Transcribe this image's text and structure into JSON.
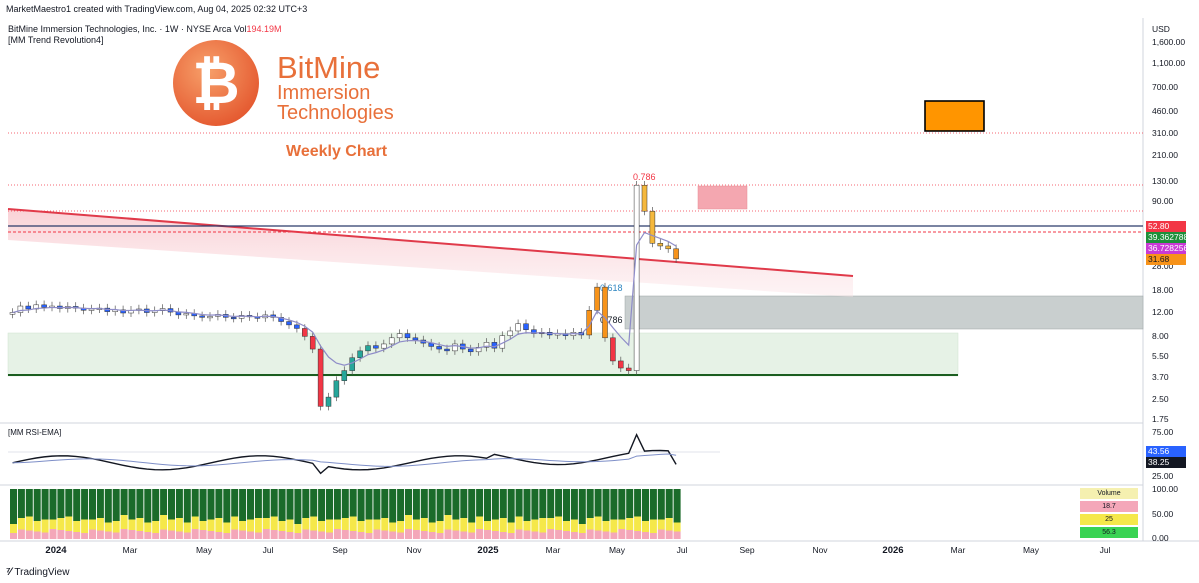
{
  "header": {
    "credit": "MarketMaestro1 created with TradingView.com, Aug 04, 2025 02:32 UTC+3",
    "symbol": "BitMine Immersion Technologies, Inc. · 1W · NYSE Arca",
    "volume_label": "Vol",
    "volume_value": "194.19M",
    "indicator": "[MM Trend Revolution4]"
  },
  "logo": {
    "brand": "BitMine",
    "line1": "Immersion",
    "line2": "Technologies",
    "chart_label": "Weekly Chart"
  },
  "currency": "USD",
  "price_axis": [
    "1,600.00",
    "1,100.00",
    "700.00",
    "460.00",
    "310.00",
    "210.00",
    "130.00",
    "90.00",
    "52.80",
    "28.00",
    "18.00",
    "12.00",
    "8.00",
    "5.50",
    "3.70",
    "2.50",
    "1.75"
  ],
  "price_tags": [
    {
      "text": "52.80",
      "color": "#f23645"
    },
    {
      "text": "39.362788",
      "color": "#1e8f3a"
    },
    {
      "text": "36.728256",
      "color": "#c93ad6"
    },
    {
      "text": "31.68",
      "color": "#f7931a"
    }
  ],
  "fib_labels": {
    "top": "0.786",
    "mid": "0.618",
    "low": "0.786"
  },
  "time_axis": [
    "2024",
    "Mar",
    "May",
    "Jul",
    "Sep",
    "Nov",
    "2025",
    "Mar",
    "May",
    "Jul",
    "Sep",
    "Nov",
    "2026",
    "Mar",
    "May",
    "Jul"
  ],
  "rsi": {
    "title": "[MM RSI-EMA]",
    "axis": [
      "75.00",
      "50.00",
      "25.00"
    ],
    "tags": [
      {
        "text": "43.56",
        "color": "#2962ff"
      },
      {
        "text": "38.25",
        "color": "#131722"
      }
    ]
  },
  "volume_panel": {
    "axis": [
      "100.00",
      "50.00",
      "0.00"
    ],
    "table": [
      {
        "text": "Volume",
        "color": "#f5f0b0"
      },
      {
        "text": "18.7",
        "color": "#f4a7b9"
      },
      {
        "text": "25",
        "color": "#f5e84a"
      },
      {
        "text": "56.3",
        "color": "#39d353"
      }
    ]
  },
  "footer": {
    "brand": "TradingView"
  },
  "chart_data": {
    "type": "candlestick",
    "timeframe": "1W",
    "y_scale": "log",
    "y_range": [
      1.75,
      1600
    ],
    "x_range": [
      "2024-01",
      "2026-07"
    ],
    "x_ticks": [
      "2024",
      "Mar",
      "May",
      "Jul",
      "Sep",
      "Nov",
      "2025",
      "Mar",
      "May",
      "Jul",
      "Sep",
      "Nov",
      "2026",
      "Mar",
      "May",
      "Jul"
    ],
    "close_series": [
      12.0,
      13.5,
      12.8,
      13.8,
      13.2,
      13.5,
      12.9,
      13.4,
      13.0,
      12.5,
      12.8,
      13.0,
      12.2,
      12.6,
      11.9,
      12.5,
      12.8,
      12.0,
      12.4,
      12.9,
      12.1,
      11.5,
      11.8,
      11.3,
      11.0,
      11.2,
      11.6,
      11.0,
      10.8,
      11.4,
      11.1,
      10.9,
      11.5,
      11.0,
      10.2,
      9.6,
      9.0,
      7.8,
      6.2,
      2.2,
      2.6,
      3.5,
      4.2,
      5.3,
      6.0,
      6.6,
      6.3,
      6.8,
      7.6,
      8.2,
      7.6,
      7.3,
      6.9,
      6.5,
      6.2,
      6.0,
      6.8,
      6.2,
      5.9,
      6.4,
      7.0,
      6.3,
      7.9,
      8.6,
      9.8,
      8.8,
      8.2,
      8.4,
      8.0,
      8.2,
      7.9,
      8.4,
      8.0,
      12.5,
      19.0,
      7.6,
      5.0,
      4.4,
      4.2,
      120.0,
      75.0,
      42.0,
      40.0,
      38.0,
      31.68
    ],
    "last_price": 31.68,
    "levels": {
      "red_dotted": [
        310,
        130,
        52.8
      ],
      "blue_line": 52.8,
      "support_line": 3.8
    },
    "fib": [
      {
        "label": "0.786",
        "price": 130
      },
      {
        "label": "0.618",
        "price": 19
      },
      {
        "label": "0.786",
        "price": 10.5
      }
    ],
    "zones": [
      {
        "name": "demand",
        "from": 4.0,
        "to": 8.0
      },
      {
        "name": "resistance",
        "from": 10.0,
        "to": 17.5
      },
      {
        "name": "supply",
        "from": 80,
        "to": 120
      }
    ],
    "rsi": {
      "last": 38.25,
      "ema_last": 43.56,
      "range": [
        25,
        75
      ]
    },
    "volume": {
      "range": [
        0,
        100
      ],
      "values": {
        "red": 18.7,
        "yellow": 25,
        "green": 56.3
      }
    }
  }
}
